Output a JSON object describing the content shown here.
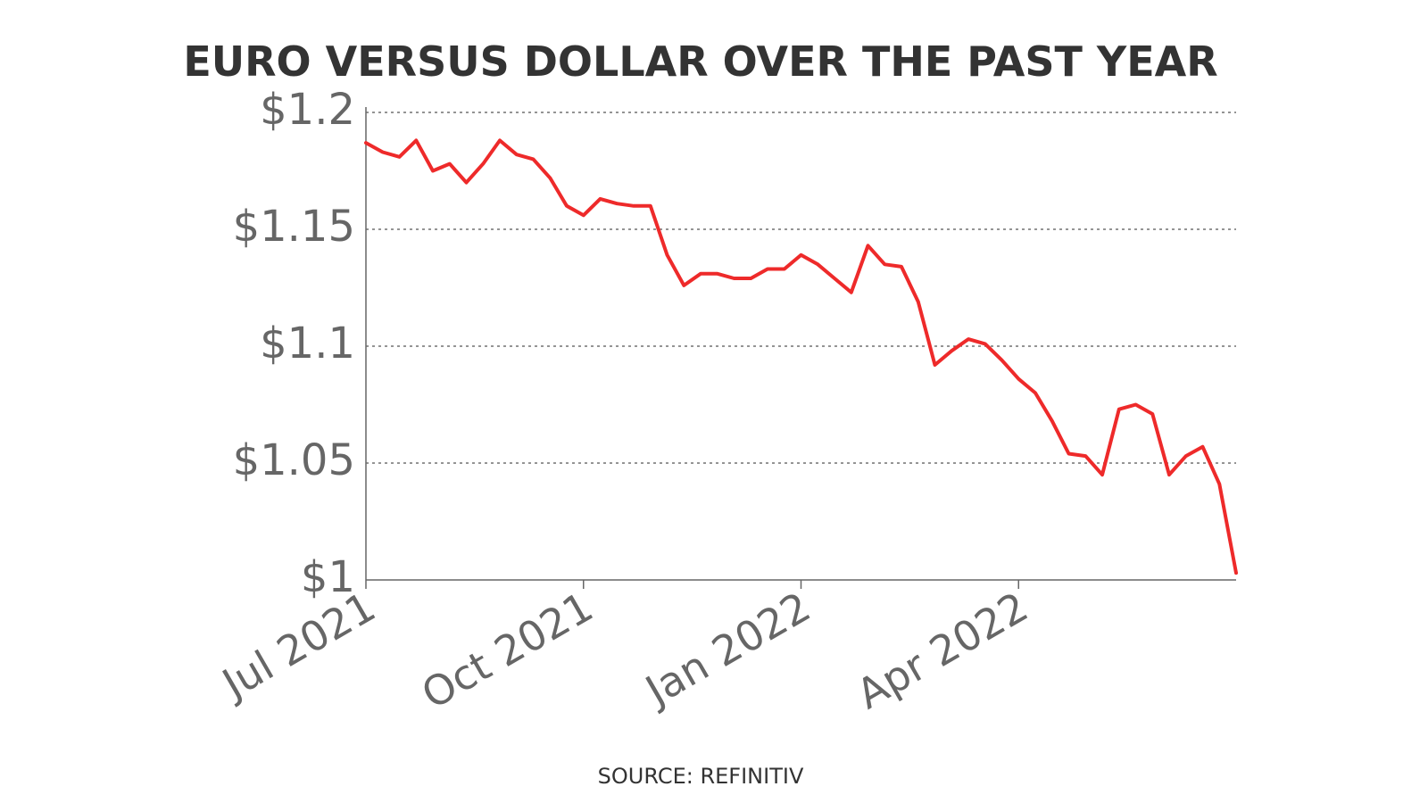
{
  "chart_data": {
    "type": "line",
    "title": "EURO VERSUS DOLLAR OVER THE PAST YEAR",
    "source": "SOURCE: REFINITIV",
    "xticks": [
      "Jul 2021",
      "Oct 2021",
      "Jan 2022",
      "Apr 2022"
    ],
    "series": [
      {
        "name": "EUR/USD",
        "color": "#ee2a2a",
        "values": [
          1.187,
          1.183,
          1.181,
          1.188,
          1.175,
          1.178,
          1.17,
          1.178,
          1.188,
          1.182,
          1.18,
          1.172,
          1.16,
          1.156,
          1.163,
          1.161,
          1.16,
          1.16,
          1.139,
          1.126,
          1.131,
          1.131,
          1.129,
          1.129,
          1.133,
          1.133,
          1.139,
          1.135,
          1.129,
          1.123,
          1.143,
          1.135,
          1.134,
          1.119,
          1.092,
          1.098,
          1.103,
          1.101,
          1.094,
          1.086,
          1.08,
          1.068,
          1.054,
          1.053,
          1.045,
          1.073,
          1.075,
          1.071,
          1.045,
          1.053,
          1.057,
          1.041,
          1.003
        ]
      }
    ],
    "ylim": [
      1,
      1.2
    ],
    "yticks": [
      {
        "value": 1,
        "label": "$1"
      },
      {
        "value": 1.05,
        "label": "$1.05"
      },
      {
        "value": 1.1,
        "label": "$1.1"
      },
      {
        "value": 1.15,
        "label": "$1.15"
      },
      {
        "value": 1.2,
        "label": "$1.2"
      }
    ],
    "grid": true
  }
}
